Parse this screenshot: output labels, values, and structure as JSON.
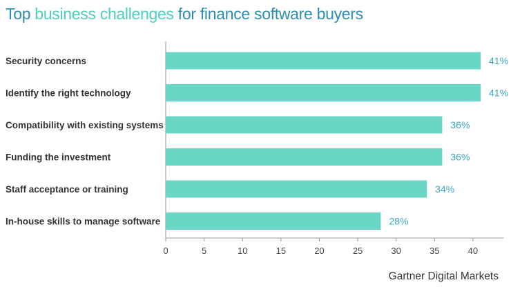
{
  "title": {
    "part1": "Top ",
    "part2": "business challenges",
    "part3": " for finance software buyers"
  },
  "colors": {
    "bar": "#6ad6c5",
    "title_primary": "#2f8fb3",
    "title_highlight": "#4fcfc0",
    "value_label": "#3aa7c2"
  },
  "chart_data": {
    "type": "bar",
    "orientation": "horizontal",
    "categories": [
      "Security concerns",
      "Identify the right technology",
      "Compatibility with existing systems",
      "Funding the investment",
      "Staff acceptance or training",
      "In-house skills to manage software"
    ],
    "values": [
      41,
      41,
      36,
      36,
      34,
      28
    ],
    "value_labels": [
      "41%",
      "41%",
      "36%",
      "36%",
      "34%",
      "28%"
    ],
    "xlim": [
      0,
      44
    ],
    "xticks": [
      0,
      5,
      10,
      15,
      20,
      25,
      30,
      35,
      40
    ],
    "grid": false
  },
  "footer": {
    "brand": "Gartner Digital Markets"
  }
}
